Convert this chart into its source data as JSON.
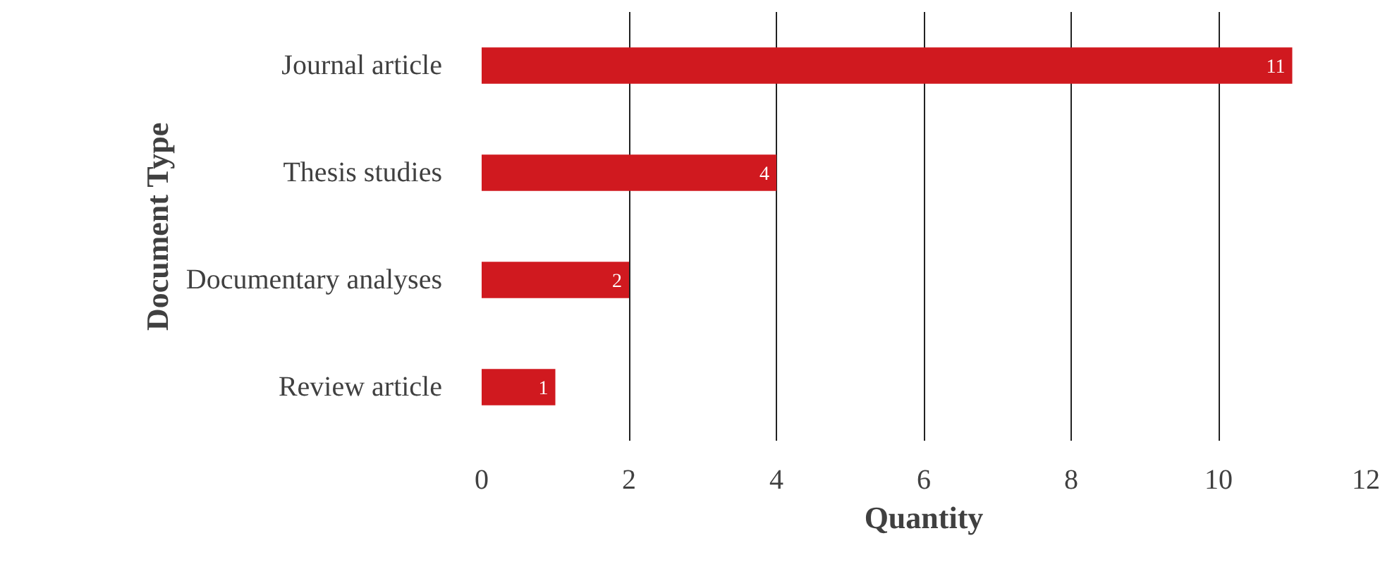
{
  "chart_data": {
    "type": "bar",
    "orientation": "horizontal",
    "xlabel": "Quantity",
    "ylabel": "Document Type",
    "categories": [
      "Journal article",
      "Thesis studies",
      "Documentary analyses",
      "Review article"
    ],
    "values": [
      11,
      4,
      2,
      1
    ],
    "color": "#d0191f",
    "xlim": [
      0,
      12
    ],
    "xticks": [
      0,
      2,
      4,
      6,
      8,
      10,
      12
    ],
    "grid": "x",
    "data_labels": true
  }
}
